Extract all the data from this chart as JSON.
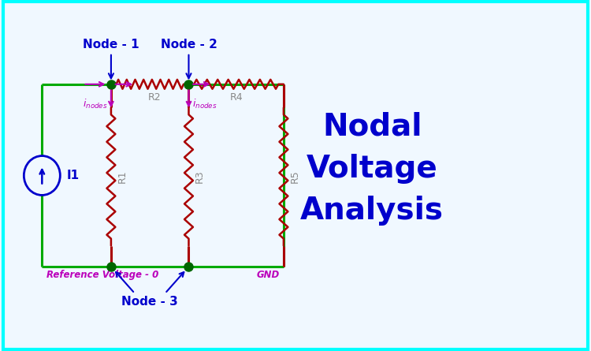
{
  "bg_color": "#f0f8ff",
  "circuit_color": "#00aa00",
  "resistor_color": "#aa0000",
  "node_color": "#006600",
  "arrow_color": "#bb00bb",
  "node_label_color": "#0000cc",
  "ref_color": "#bb00bb",
  "title_color": "#0000cc",
  "source_color": "#0000cc",
  "title": "Nodal\nVoltage\nAnalysis",
  "title_fontsize": 28,
  "node1_label": "Node - 1",
  "node2_label": "Node - 2",
  "node3_label": "Node - 3",
  "ref_label": "Reference Voltage - 0",
  "gnd_label": "GND",
  "i1_label": "I1",
  "r1_label": "R1",
  "r2_label": "R2",
  "r3_label": "R3",
  "r4_label": "R4",
  "r5_label": "R5"
}
